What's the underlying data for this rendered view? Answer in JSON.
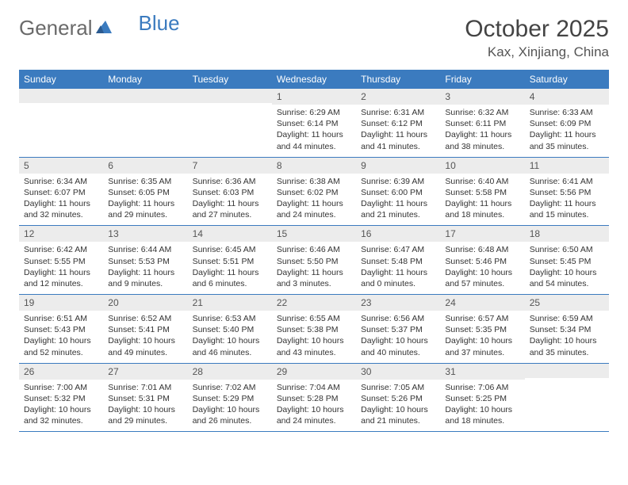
{
  "logo": {
    "text1": "General",
    "text2": "Blue"
  },
  "title": "October 2025",
  "location": "Kax, Xinjiang, China",
  "colors": {
    "header_bg": "#3b7bbf",
    "header_text": "#ffffff",
    "daynum_bg": "#ececec",
    "border": "#3b7bbf",
    "logo_gray": "#6a6a6a",
    "logo_blue": "#3b7bbf"
  },
  "day_labels": [
    "Sunday",
    "Monday",
    "Tuesday",
    "Wednesday",
    "Thursday",
    "Friday",
    "Saturday"
  ],
  "weeks": [
    [
      {
        "n": "",
        "sr": "",
        "ss": "",
        "dl": ""
      },
      {
        "n": "",
        "sr": "",
        "ss": "",
        "dl": ""
      },
      {
        "n": "",
        "sr": "",
        "ss": "",
        "dl": ""
      },
      {
        "n": "1",
        "sr": "Sunrise: 6:29 AM",
        "ss": "Sunset: 6:14 PM",
        "dl": "Daylight: 11 hours and 44 minutes."
      },
      {
        "n": "2",
        "sr": "Sunrise: 6:31 AM",
        "ss": "Sunset: 6:12 PM",
        "dl": "Daylight: 11 hours and 41 minutes."
      },
      {
        "n": "3",
        "sr": "Sunrise: 6:32 AM",
        "ss": "Sunset: 6:11 PM",
        "dl": "Daylight: 11 hours and 38 minutes."
      },
      {
        "n": "4",
        "sr": "Sunrise: 6:33 AM",
        "ss": "Sunset: 6:09 PM",
        "dl": "Daylight: 11 hours and 35 minutes."
      }
    ],
    [
      {
        "n": "5",
        "sr": "Sunrise: 6:34 AM",
        "ss": "Sunset: 6:07 PM",
        "dl": "Daylight: 11 hours and 32 minutes."
      },
      {
        "n": "6",
        "sr": "Sunrise: 6:35 AM",
        "ss": "Sunset: 6:05 PM",
        "dl": "Daylight: 11 hours and 29 minutes."
      },
      {
        "n": "7",
        "sr": "Sunrise: 6:36 AM",
        "ss": "Sunset: 6:03 PM",
        "dl": "Daylight: 11 hours and 27 minutes."
      },
      {
        "n": "8",
        "sr": "Sunrise: 6:38 AM",
        "ss": "Sunset: 6:02 PM",
        "dl": "Daylight: 11 hours and 24 minutes."
      },
      {
        "n": "9",
        "sr": "Sunrise: 6:39 AM",
        "ss": "Sunset: 6:00 PM",
        "dl": "Daylight: 11 hours and 21 minutes."
      },
      {
        "n": "10",
        "sr": "Sunrise: 6:40 AM",
        "ss": "Sunset: 5:58 PM",
        "dl": "Daylight: 11 hours and 18 minutes."
      },
      {
        "n": "11",
        "sr": "Sunrise: 6:41 AM",
        "ss": "Sunset: 5:56 PM",
        "dl": "Daylight: 11 hours and 15 minutes."
      }
    ],
    [
      {
        "n": "12",
        "sr": "Sunrise: 6:42 AM",
        "ss": "Sunset: 5:55 PM",
        "dl": "Daylight: 11 hours and 12 minutes."
      },
      {
        "n": "13",
        "sr": "Sunrise: 6:44 AM",
        "ss": "Sunset: 5:53 PM",
        "dl": "Daylight: 11 hours and 9 minutes."
      },
      {
        "n": "14",
        "sr": "Sunrise: 6:45 AM",
        "ss": "Sunset: 5:51 PM",
        "dl": "Daylight: 11 hours and 6 minutes."
      },
      {
        "n": "15",
        "sr": "Sunrise: 6:46 AM",
        "ss": "Sunset: 5:50 PM",
        "dl": "Daylight: 11 hours and 3 minutes."
      },
      {
        "n": "16",
        "sr": "Sunrise: 6:47 AM",
        "ss": "Sunset: 5:48 PM",
        "dl": "Daylight: 11 hours and 0 minutes."
      },
      {
        "n": "17",
        "sr": "Sunrise: 6:48 AM",
        "ss": "Sunset: 5:46 PM",
        "dl": "Daylight: 10 hours and 57 minutes."
      },
      {
        "n": "18",
        "sr": "Sunrise: 6:50 AM",
        "ss": "Sunset: 5:45 PM",
        "dl": "Daylight: 10 hours and 54 minutes."
      }
    ],
    [
      {
        "n": "19",
        "sr": "Sunrise: 6:51 AM",
        "ss": "Sunset: 5:43 PM",
        "dl": "Daylight: 10 hours and 52 minutes."
      },
      {
        "n": "20",
        "sr": "Sunrise: 6:52 AM",
        "ss": "Sunset: 5:41 PM",
        "dl": "Daylight: 10 hours and 49 minutes."
      },
      {
        "n": "21",
        "sr": "Sunrise: 6:53 AM",
        "ss": "Sunset: 5:40 PM",
        "dl": "Daylight: 10 hours and 46 minutes."
      },
      {
        "n": "22",
        "sr": "Sunrise: 6:55 AM",
        "ss": "Sunset: 5:38 PM",
        "dl": "Daylight: 10 hours and 43 minutes."
      },
      {
        "n": "23",
        "sr": "Sunrise: 6:56 AM",
        "ss": "Sunset: 5:37 PM",
        "dl": "Daylight: 10 hours and 40 minutes."
      },
      {
        "n": "24",
        "sr": "Sunrise: 6:57 AM",
        "ss": "Sunset: 5:35 PM",
        "dl": "Daylight: 10 hours and 37 minutes."
      },
      {
        "n": "25",
        "sr": "Sunrise: 6:59 AM",
        "ss": "Sunset: 5:34 PM",
        "dl": "Daylight: 10 hours and 35 minutes."
      }
    ],
    [
      {
        "n": "26",
        "sr": "Sunrise: 7:00 AM",
        "ss": "Sunset: 5:32 PM",
        "dl": "Daylight: 10 hours and 32 minutes."
      },
      {
        "n": "27",
        "sr": "Sunrise: 7:01 AM",
        "ss": "Sunset: 5:31 PM",
        "dl": "Daylight: 10 hours and 29 minutes."
      },
      {
        "n": "28",
        "sr": "Sunrise: 7:02 AM",
        "ss": "Sunset: 5:29 PM",
        "dl": "Daylight: 10 hours and 26 minutes."
      },
      {
        "n": "29",
        "sr": "Sunrise: 7:04 AM",
        "ss": "Sunset: 5:28 PM",
        "dl": "Daylight: 10 hours and 24 minutes."
      },
      {
        "n": "30",
        "sr": "Sunrise: 7:05 AM",
        "ss": "Sunset: 5:26 PM",
        "dl": "Daylight: 10 hours and 21 minutes."
      },
      {
        "n": "31",
        "sr": "Sunrise: 7:06 AM",
        "ss": "Sunset: 5:25 PM",
        "dl": "Daylight: 10 hours and 18 minutes."
      },
      {
        "n": "",
        "sr": "",
        "ss": "",
        "dl": ""
      }
    ]
  ]
}
